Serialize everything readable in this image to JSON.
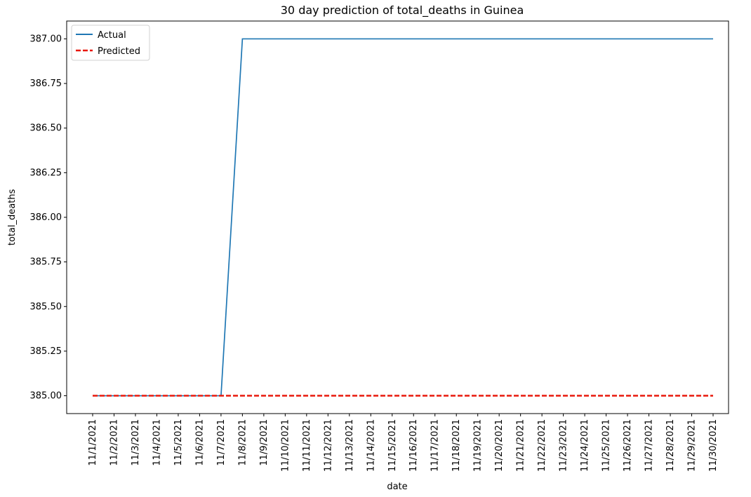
{
  "chart_data": {
    "type": "line",
    "title": "30 day prediction of total_deaths in Guinea",
    "xlabel": "date",
    "ylabel": "total_deaths",
    "x": [
      "11/1/2021",
      "11/2/2021",
      "11/3/2021",
      "11/4/2021",
      "11/5/2021",
      "11/6/2021",
      "11/7/2021",
      "11/8/2021",
      "11/9/2021",
      "11/10/2021",
      "11/11/2021",
      "11/12/2021",
      "11/13/2021",
      "11/14/2021",
      "11/15/2021",
      "11/16/2021",
      "11/17/2021",
      "11/18/2021",
      "11/19/2021",
      "11/20/2021",
      "11/21/2021",
      "11/22/2021",
      "11/23/2021",
      "11/24/2021",
      "11/25/2021",
      "11/26/2021",
      "11/27/2021",
      "11/28/2021",
      "11/29/2021",
      "11/30/2021"
    ],
    "series": [
      {
        "name": "Actual",
        "color": "#1f77b4",
        "style": "solid",
        "values": [
          385,
          385,
          385,
          385,
          385,
          385,
          385,
          387,
          387,
          387,
          387,
          387,
          387,
          387,
          387,
          387,
          387,
          387,
          387,
          387,
          387,
          387,
          387,
          387,
          387,
          387,
          387,
          387,
          387,
          387
        ]
      },
      {
        "name": "Predicted",
        "color": "#e8180c",
        "style": "dashed",
        "values": [
          385,
          385,
          385,
          385,
          385,
          385,
          385,
          385,
          385,
          385,
          385,
          385,
          385,
          385,
          385,
          385,
          385,
          385,
          385,
          385,
          385,
          385,
          385,
          385,
          385,
          385,
          385,
          385,
          385,
          385
        ]
      }
    ],
    "yticks": [
      "385.00",
      "385.25",
      "385.50",
      "385.75",
      "386.00",
      "386.25",
      "386.50",
      "386.75",
      "387.00"
    ],
    "ylim": [
      384.9,
      387.1
    ],
    "grid": false,
    "legend": "top-left"
  }
}
